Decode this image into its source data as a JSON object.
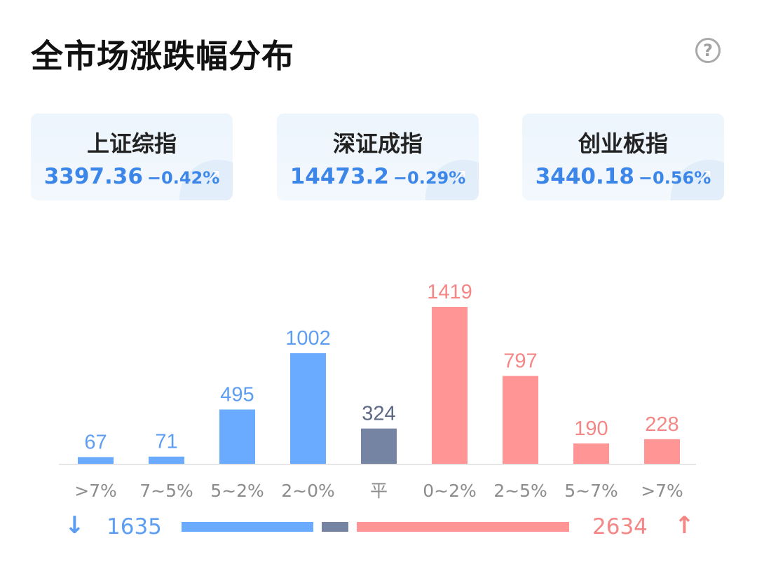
{
  "title": "全市场涨跌幅分布",
  "help_icon": "?",
  "indices": [
    {
      "name": "上证综指",
      "value": "3397.36",
      "change": "−0.42%",
      "icon": "trend-arrow-icon"
    },
    {
      "name": "深证成指",
      "value": "14473.2",
      "change": "−0.29%",
      "icon": "trend-arrow-icon"
    },
    {
      "name": "创业板指",
      "value": "3440.18",
      "change": "−0.56%",
      "icon": "trend-arrow-icon"
    }
  ],
  "colors": {
    "down": "#6aabff",
    "flat": "#7584a3",
    "up": "#ff9595",
    "down_text": "#5d9ef3",
    "up_text": "#f58686",
    "flat_text": "#5e6a85"
  },
  "chart_data": {
    "type": "bar",
    "title": "",
    "xlabel": "",
    "ylabel": "",
    "categories": [
      ">7%",
      "7~5%",
      "5~2%",
      "2~0%",
      "平",
      "0~2%",
      "2~5%",
      "5~7%",
      ">7%"
    ],
    "values": [
      67,
      71,
      495,
      1002,
      324,
      1419,
      797,
      190,
      228
    ],
    "value_labels": [
      "67",
      "71",
      "495",
      "1002",
      "324",
      "1419",
      "797",
      "190",
      "228"
    ],
    "groups": [
      "down",
      "down",
      "down",
      "down",
      "flat",
      "up",
      "up",
      "up",
      "up"
    ],
    "grid": false
  },
  "summary": {
    "down_icon": "↓",
    "down_count": "1635",
    "up_count": "2634",
    "up_icon": "↑",
    "flat_count": 324
  }
}
